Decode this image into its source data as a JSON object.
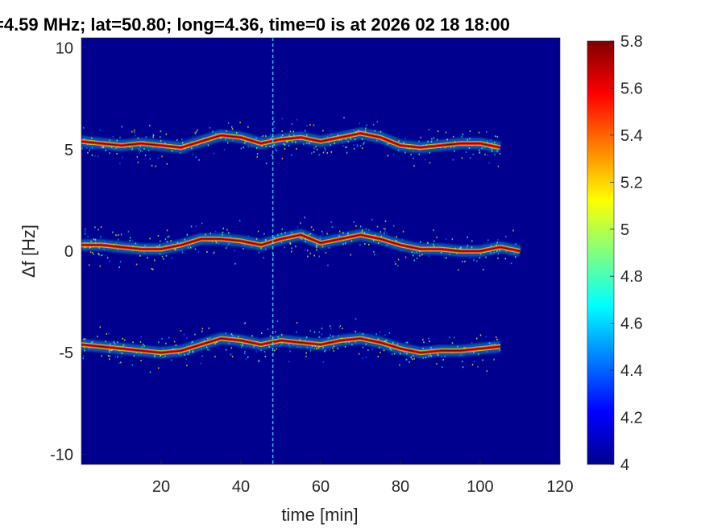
{
  "chart_data": {
    "type": "heatmap",
    "title": "=4.59 MHz;  lat=50.80; long=4.36, time=0 is at 2026 02 18 18:00",
    "xlabel": "time [min]",
    "ylabel_prefix": "Δ",
    "ylabel_rest": "f [Hz]",
    "xlim": [
      0,
      120
    ],
    "ylim": [
      -10.5,
      10.5
    ],
    "xticks": [
      20,
      40,
      60,
      80,
      100,
      120
    ],
    "xtick_labels": [
      "20",
      "40",
      "60",
      "80",
      "100",
      "120"
    ],
    "yticks": [
      10,
      5,
      0,
      -5,
      -10
    ],
    "ytick_labels": [
      "10",
      "5",
      "0",
      "-5",
      "-10"
    ],
    "colormap": "jet",
    "clim": [
      4,
      5.8
    ],
    "colorbar_ticks": [
      5.8,
      5.6,
      5.4,
      5.2,
      5,
      4.8,
      4.6,
      4.4,
      4.2,
      4
    ],
    "colorbar_tick_labels": [
      "5.8",
      "5.6",
      "5.4",
      "5.2",
      "5",
      "4.8",
      "4.6",
      "4.4",
      "4.2",
      "4"
    ],
    "background_color": "#00008f",
    "vertical_line_time": 48,
    "series": [
      {
        "x": [
          0,
          5,
          10,
          15,
          20,
          25,
          30,
          35,
          40,
          45,
          50,
          55,
          60,
          65,
          70,
          75,
          80,
          85,
          90,
          95,
          100,
          105
        ],
        "y": [
          5.4,
          5.3,
          5.2,
          5.3,
          5.2,
          5.1,
          5.4,
          5.7,
          5.6,
          5.3,
          5.5,
          5.6,
          5.4,
          5.6,
          5.8,
          5.6,
          5.2,
          5.1,
          5.2,
          5.3,
          5.3,
          5.1
        ]
      },
      {
        "x": [
          0,
          5,
          10,
          15,
          20,
          25,
          30,
          35,
          40,
          45,
          50,
          55,
          60,
          65,
          70,
          75,
          80,
          85,
          90,
          95,
          100,
          105,
          110
        ],
        "y": [
          0.3,
          0.3,
          0.2,
          0.1,
          0.1,
          0.3,
          0.6,
          0.6,
          0.5,
          0.3,
          0.6,
          0.8,
          0.4,
          0.6,
          0.8,
          0.6,
          0.3,
          0.1,
          0.1,
          0.0,
          0.0,
          0.2,
          0.0
        ]
      },
      {
        "x": [
          0,
          5,
          10,
          15,
          20,
          25,
          30,
          35,
          40,
          45,
          50,
          55,
          60,
          65,
          70,
          75,
          80,
          85,
          90,
          95,
          100,
          105
        ],
        "y": [
          -4.6,
          -4.7,
          -4.8,
          -4.9,
          -5.0,
          -4.9,
          -4.6,
          -4.3,
          -4.4,
          -4.6,
          -4.4,
          -4.5,
          -4.6,
          -4.4,
          -4.3,
          -4.5,
          -4.8,
          -5.0,
          -4.9,
          -4.9,
          -4.8,
          -4.7
        ]
      }
    ]
  }
}
